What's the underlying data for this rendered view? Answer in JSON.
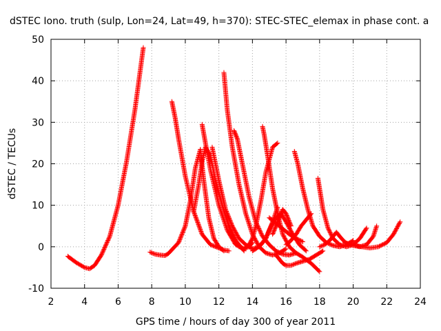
{
  "chart_data": {
    "type": "scatter",
    "title": "dSTEC Iono. truth (sulp, Lon=24, Lat=49, h=370): STEC-STEC_elemax in phase cont. a",
    "xlabel": "GPS time / hours of day 300 of year 2011",
    "ylabel": "dSTEC  / TECUs",
    "xlim": [
      2,
      24
    ],
    "ylim": [
      -10,
      50
    ],
    "x_ticks": [
      2,
      4,
      6,
      8,
      10,
      12,
      14,
      16,
      18,
      20,
      22,
      24
    ],
    "y_ticks": [
      -10,
      0,
      10,
      20,
      30,
      40,
      50
    ],
    "grid": true,
    "marker": "+",
    "color": "#ff0000",
    "series": [
      {
        "x": [
          3.0,
          3.5,
          4.0,
          4.3,
          4.6,
          5.0,
          5.5,
          6.0,
          6.5,
          7.0,
          7.3,
          7.5
        ],
        "y": [
          -2.3,
          -3.8,
          -5.0,
          -5.3,
          -4.5,
          -2.0,
          2.5,
          10.0,
          20.5,
          33.0,
          42.0,
          48.0
        ]
      },
      {
        "x": [
          7.9,
          8.2,
          8.5,
          8.8,
          9.0,
          9.3,
          9.6,
          10.0,
          10.3,
          10.6,
          10.9,
          11.1,
          11.4,
          11.7,
          12.0,
          12.3
        ],
        "y": [
          -1.3,
          -1.8,
          -2.0,
          -2.1,
          -1.6,
          -0.3,
          1.0,
          5.0,
          11.0,
          19.0,
          23.5,
          16.0,
          7.0,
          2.0,
          0.0,
          -1.0
        ]
      },
      {
        "x": [
          9.2,
          9.4,
          9.6,
          10.0,
          10.5,
          11.0,
          11.5,
          12.0,
          12.3,
          12.6
        ],
        "y": [
          35.0,
          31.0,
          26.0,
          17.0,
          8.5,
          3.0,
          0.5,
          -0.3,
          -0.8,
          -1.0
        ]
      },
      {
        "x": [
          10.5,
          10.8,
          11.0,
          11.2,
          11.5,
          11.8,
          12.2,
          12.6,
          13.0,
          13.5
        ],
        "y": [
          8.5,
          15.0,
          20.5,
          24.0,
          22.0,
          16.0,
          10.0,
          5.0,
          1.5,
          -1.0
        ]
      },
      {
        "x": [
          11.0,
          11.2,
          11.5,
          12.0,
          12.5,
          13.0,
          13.5,
          13.8,
          14.0
        ],
        "y": [
          29.5,
          25.0,
          18.5,
          10.0,
          4.0,
          0.5,
          -0.5,
          0.0,
          1.0
        ]
      },
      {
        "x": [
          11.6,
          11.8,
          12.0,
          12.4,
          12.8,
          13.2,
          13.6,
          14.0,
          14.4,
          14.8,
          15.2,
          15.5
        ],
        "y": [
          24.0,
          20.0,
          16.0,
          9.0,
          5.0,
          2.0,
          0.5,
          -0.5,
          0.0,
          2.0,
          6.0,
          9.5
        ]
      },
      {
        "x": [
          12.3,
          12.5,
          12.8,
          13.2,
          13.6,
          14.0,
          14.4,
          14.8,
          15.2,
          15.6,
          16.0
        ],
        "y": [
          42.0,
          33.0,
          24.0,
          15.0,
          8.0,
          3.0,
          0.0,
          -1.5,
          -2.0,
          -1.5,
          -0.5
        ]
      },
      {
        "x": [
          12.9,
          13.1,
          13.4,
          13.8,
          14.2,
          14.6,
          15.0,
          15.4,
          15.8,
          16.2,
          16.6
        ],
        "y": [
          28.0,
          26.0,
          20.0,
          12.0,
          6.0,
          2.5,
          0.5,
          -1.0,
          -1.8,
          -2.0,
          -1.5
        ]
      },
      {
        "x": [
          12.6,
          12.9,
          13.2,
          13.5,
          13.8,
          14.0,
          14.2,
          14.5,
          14.8,
          15.2,
          15.5
        ],
        "y": [
          5.0,
          2.0,
          0.0,
          -0.5,
          0.5,
          2.0,
          5.0,
          11.0,
          18.0,
          24.0,
          25.0
        ]
      },
      {
        "x": [
          14.6,
          14.7,
          14.9,
          15.2,
          15.5,
          15.8,
          16.2,
          16.6,
          17.0,
          17.5,
          18.0
        ],
        "y": [
          29.0,
          27.0,
          22.0,
          14.0,
          8.0,
          3.0,
          0.0,
          -1.5,
          -2.5,
          -4.0,
          -6.0
        ]
      },
      {
        "x": [
          15.0,
          15.3,
          15.6,
          15.9,
          16.2,
          16.6,
          17.0
        ],
        "y": [
          7.0,
          6.0,
          5.0,
          4.0,
          3.0,
          2.0,
          1.2
        ]
      },
      {
        "x": [
          14.0,
          14.2,
          14.5,
          14.8,
          15.0,
          15.3,
          15.7,
          16.0,
          16.4,
          16.8,
          17.2
        ],
        "y": [
          -1.0,
          -0.5,
          0.5,
          2.0,
          4.0,
          6.5,
          8.0,
          6.0,
          3.0,
          0.5,
          -1.0
        ]
      },
      {
        "x": [
          15.4,
          15.6,
          15.8,
          16.0,
          16.3,
          16.6,
          17.0,
          17.4,
          17.8,
          18.2
        ],
        "y": [
          -2.0,
          -3.0,
          -4.0,
          -4.5,
          -4.5,
          -4.0,
          -3.5,
          -3.0,
          -2.0,
          -1.0
        ]
      },
      {
        "x": [
          15.2,
          15.4,
          15.6,
          15.8,
          16.0,
          16.3
        ],
        "y": [
          3.0,
          5.0,
          7.0,
          9.0,
          8.0,
          5.0
        ]
      },
      {
        "x": [
          16.5,
          16.7,
          17.0,
          17.3,
          17.6,
          18.0,
          18.4,
          18.8,
          19.2,
          19.6,
          20.0
        ],
        "y": [
          23.0,
          20.0,
          14.0,
          9.0,
          5.0,
          2.5,
          1.0,
          0.3,
          0.0,
          0.5,
          1.5
        ]
      },
      {
        "x": [
          16.0,
          16.3,
          16.6,
          16.9,
          17.2,
          17.5
        ],
        "y": [
          0.5,
          1.5,
          3.0,
          5.0,
          6.5,
          8.0
        ]
      },
      {
        "x": [
          17.9,
          18.0,
          18.2,
          18.5,
          18.8,
          19.2,
          19.6,
          20.0,
          20.4,
          20.8
        ],
        "y": [
          16.5,
          14.0,
          9.0,
          4.5,
          2.0,
          0.5,
          0.0,
          0.5,
          2.0,
          4.5
        ]
      },
      {
        "x": [
          18.0,
          18.3,
          18.6,
          19.0,
          19.3,
          19.6,
          20.0,
          20.4,
          20.8,
          21.2,
          21.4
        ],
        "y": [
          0.0,
          0.5,
          1.5,
          3.5,
          2.0,
          0.8,
          0.3,
          0.0,
          0.5,
          2.5,
          5.0
        ]
      },
      {
        "x": [
          19.5,
          20.0,
          20.5,
          21.0,
          21.5,
          22.0,
          22.4,
          22.8
        ],
        "y": [
          1.0,
          0.5,
          0.0,
          -0.3,
          0.0,
          1.0,
          3.0,
          6.0
        ]
      }
    ]
  }
}
